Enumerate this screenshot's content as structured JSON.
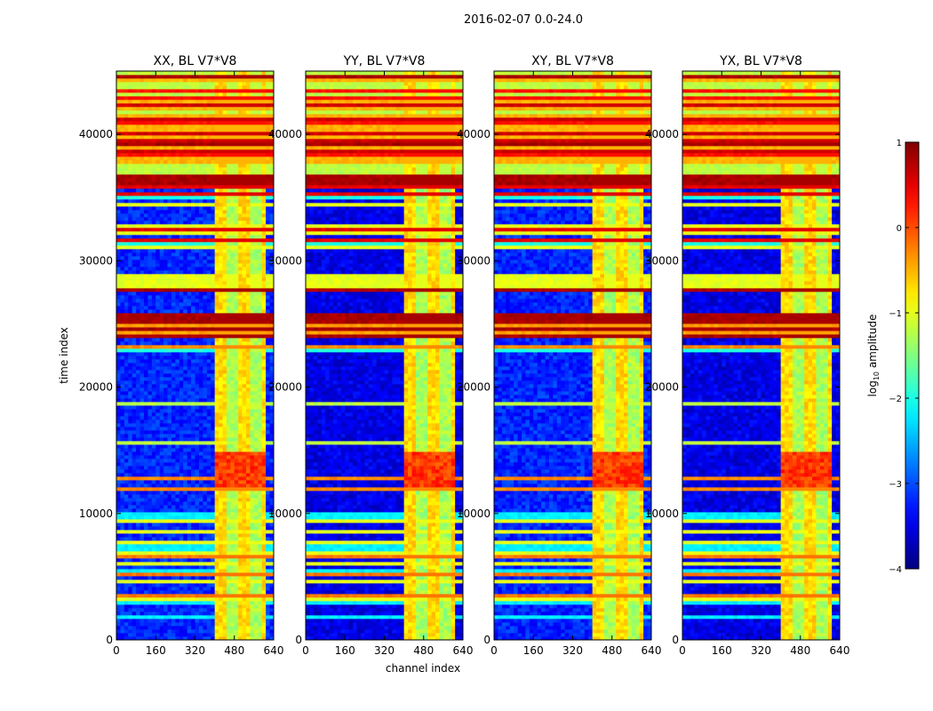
{
  "figure_title": "2016-02-07 0.0-24.0",
  "chart_data": {
    "type": "heatmap",
    "suptitle": "2016-02-07 0.0-24.0",
    "xlabel": "channel index",
    "ylabel": "time index",
    "xlim": [
      0,
      640
    ],
    "ylim": [
      0,
      45000
    ],
    "xticks": [
      0,
      160,
      320,
      480,
      640
    ],
    "yticks": [
      0,
      10000,
      20000,
      30000,
      40000
    ],
    "colormap": "jet",
    "colorbar": {
      "label": "log10 amplitude",
      "label_main": "log",
      "label_sub": "10",
      "label_rest": " amplitude",
      "range": [
        -4,
        1
      ],
      "ticks": [
        "1",
        "0",
        "−1",
        "−2",
        "−3",
        "−4"
      ]
    },
    "panels": [
      {
        "title": "XX, BL V7*V8",
        "pol": "XX"
      },
      {
        "title": "YY, BL V7*V8",
        "pol": "YY"
      },
      {
        "title": "XY, BL V7*V8",
        "pol": "XY"
      },
      {
        "title": "YX, BL V7*V8",
        "pol": "YX"
      }
    ],
    "features": {
      "signal_channel_range": [
        400,
        600
      ],
      "bright_segment_time_range": [
        12000,
        15000
      ],
      "background_log_amplitude": -3.3,
      "signal_log_amplitude": -1.0
    }
  }
}
